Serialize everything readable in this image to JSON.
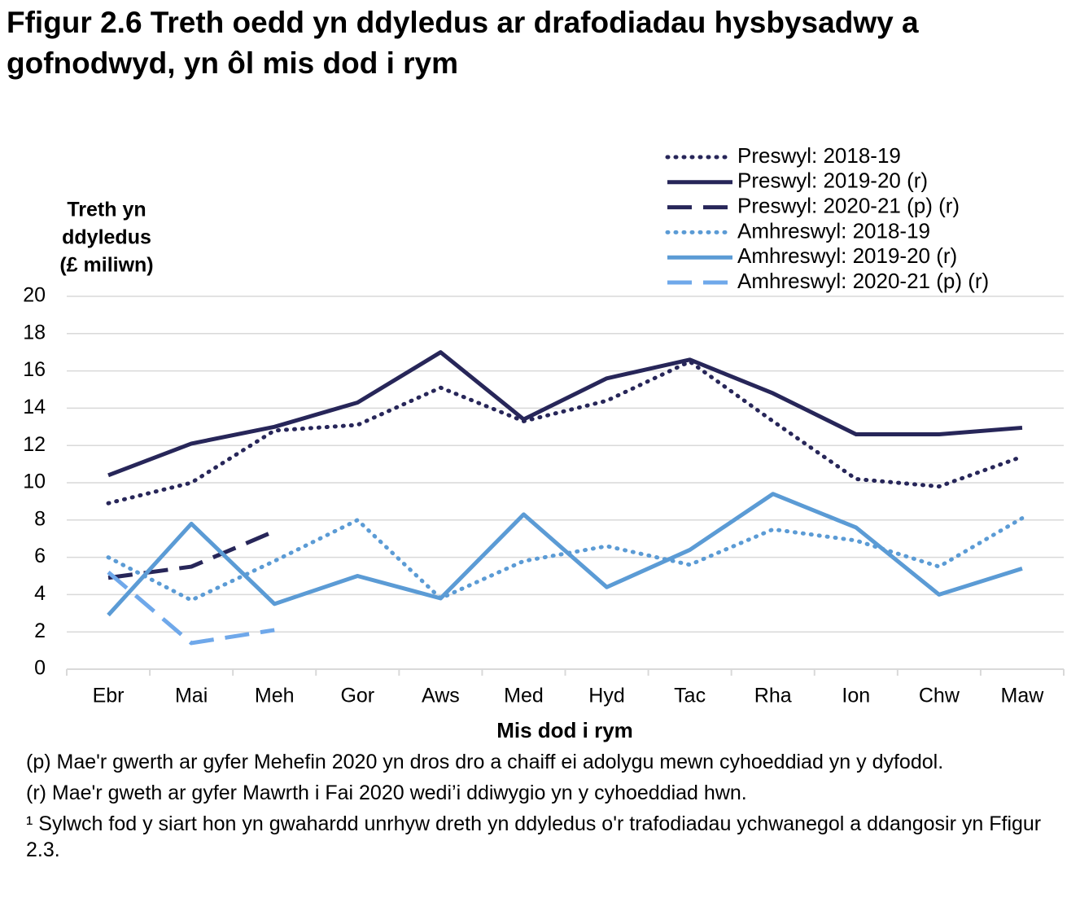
{
  "chart_data": {
    "type": "line",
    "title": [
      "Ffigur 2.6  Treth oedd yn ddyledus ar drafodiadau hysbysadwy a",
      "gofnodwyd, yn ôl mis dod i rym"
    ],
    "y_label": [
      "Treth yn",
      "ddyledus",
      "(£ miliwn)"
    ],
    "x_label": "Mis dod i rym",
    "categories": [
      "Ebr",
      "Mai",
      "Meh",
      "Gor",
      "Aws",
      "Med",
      "Hyd",
      "Tac",
      "Rha",
      "Ion",
      "Chw",
      "Maw"
    ],
    "series": [
      {
        "name": "Preswyl: 2018-19",
        "color": "#272659",
        "dash": "dot",
        "values": [
          8.9,
          10.0,
          12.8,
          13.1,
          15.1,
          13.3,
          14.4,
          16.5,
          13.3,
          10.2,
          9.8,
          11.4
        ]
      },
      {
        "name": "Preswyl: 2019-20 (r)",
        "color": "#272659",
        "dash": "solid",
        "values": [
          10.4,
          12.1,
          13.0,
          14.3,
          17.0,
          13.4,
          15.6,
          16.6,
          14.8,
          12.6,
          12.6,
          12.95
        ]
      },
      {
        "name": "Preswyl: 2020-21 (p) (r)",
        "color": "#272659",
        "dash": "dash",
        "values": [
          4.9,
          5.5,
          7.4,
          null,
          null,
          null,
          null,
          null,
          null,
          null,
          null,
          null
        ]
      },
      {
        "name": "Amhreswyl: 2018-19",
        "color": "#5b9bd5",
        "dash": "dot",
        "values": [
          6.0,
          3.7,
          5.8,
          8.0,
          3.8,
          5.8,
          6.6,
          5.6,
          7.5,
          6.9,
          5.5,
          8.1
        ]
      },
      {
        "name": "Amhreswyl: 2019-20 (r)",
        "color": "#5b9bd5",
        "dash": "solid",
        "values": [
          2.9,
          7.8,
          3.5,
          5.0,
          3.8,
          8.3,
          4.4,
          6.4,
          9.4,
          7.6,
          4.0,
          5.4
        ]
      },
      {
        "name": "Amhreswyl: 2020-21 (p) (r)",
        "color": "#6fa8ea",
        "dash": "dash",
        "values": [
          5.2,
          1.4,
          2.1,
          null,
          null,
          null,
          null,
          null,
          null,
          null,
          null,
          null
        ]
      }
    ],
    "ylim": [
      0,
      20
    ],
    "yticks": [
      0,
      2,
      4,
      6,
      8,
      10,
      12,
      14,
      16,
      18,
      20
    ],
    "grid": true,
    "legend": "top-right",
    "notes": [
      "(p) Mae'r gwerth ar gyfer Mehefin 2020 yn dros dro a chaiff ei adolygu mewn cyhoeddiad yn y dyfodol.",
      "(r) Mae'r gweth ar gyfer Mawrth i Fai 2020 wedi’i ddiwygio yn y cyhoeddiad hwn.",
      "¹ Sylwch fod y siart hon yn gwahardd  unrhyw dreth yn ddyledus o'r trafodiadau  ychwanegol a ddangosir yn Ffigur 2.3."
    ]
  }
}
